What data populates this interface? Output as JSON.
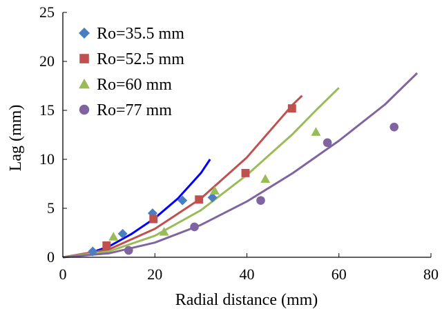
{
  "chart_data": {
    "type": "scatter",
    "title": "",
    "xlabel": "Radial distance (mm)",
    "ylabel": "Lag (mm)",
    "xlim": [
      0,
      80
    ],
    "ylim": [
      0,
      25
    ],
    "xticks": [
      0,
      20,
      40,
      60,
      80
    ],
    "yticks": [
      0,
      5,
      10,
      15,
      20,
      25
    ],
    "grid": false,
    "legend_position": "top-left",
    "series": [
      {
        "name": "Ro=35.5 mm",
        "marker": "diamond",
        "color": "#4a7ebf",
        "points": [
          [
            6.5,
            0.6
          ],
          [
            13,
            2.4
          ],
          [
            19.5,
            4.5
          ],
          [
            26,
            5.8
          ],
          [
            32.5,
            6.1
          ]
        ]
      },
      {
        "name": "Ro=52.5 mm",
        "marker": "square",
        "color": "#c0504d",
        "points": [
          [
            9.5,
            1.2
          ],
          [
            19.7,
            3.9
          ],
          [
            29.6,
            5.9
          ],
          [
            39.7,
            8.6
          ],
          [
            49.8,
            15.2
          ]
        ]
      },
      {
        "name": "Ro=60 mm",
        "marker": "triangle",
        "color": "#9bbb59",
        "points": [
          [
            11,
            2.1
          ],
          [
            22,
            2.6
          ],
          [
            33,
            6.8
          ],
          [
            44,
            8.0
          ],
          [
            55,
            12.8
          ]
        ]
      },
      {
        "name": "Ro=77 mm",
        "marker": "circle",
        "color": "#8064a2",
        "points": [
          [
            14.3,
            0.7
          ],
          [
            28.6,
            3.1
          ],
          [
            43,
            5.8
          ],
          [
            57.5,
            11.7
          ],
          [
            72,
            13.3
          ]
        ]
      }
    ],
    "curves": [
      {
        "color": "#0000ff",
        "points": [
          [
            0,
            0
          ],
          [
            5,
            0.3
          ],
          [
            10,
            1.1
          ],
          [
            15,
            2.4
          ],
          [
            20,
            4.0
          ],
          [
            25,
            6.0
          ],
          [
            30,
            8.6
          ],
          [
            32,
            10.0
          ]
        ]
      },
      {
        "color": "#c0504d",
        "points": [
          [
            0,
            0
          ],
          [
            10,
            0.8
          ],
          [
            20,
            2.9
          ],
          [
            30,
            6.0
          ],
          [
            40,
            10.2
          ],
          [
            45,
            12.9
          ],
          [
            50,
            15.6
          ],
          [
            52,
            16.5
          ]
        ]
      },
      {
        "color": "#9bbb59",
        "points": [
          [
            0,
            0
          ],
          [
            10,
            0.6
          ],
          [
            20,
            2.2
          ],
          [
            30,
            4.8
          ],
          [
            40,
            8.4
          ],
          [
            50,
            12.6
          ],
          [
            55,
            15.0
          ],
          [
            60,
            17.3
          ]
        ]
      },
      {
        "color": "#8064a2",
        "points": [
          [
            0,
            0
          ],
          [
            10,
            0.4
          ],
          [
            20,
            1.5
          ],
          [
            30,
            3.3
          ],
          [
            40,
            5.7
          ],
          [
            50,
            8.6
          ],
          [
            60,
            11.9
          ],
          [
            70,
            15.6
          ],
          [
            77,
            18.8
          ]
        ]
      }
    ]
  }
}
